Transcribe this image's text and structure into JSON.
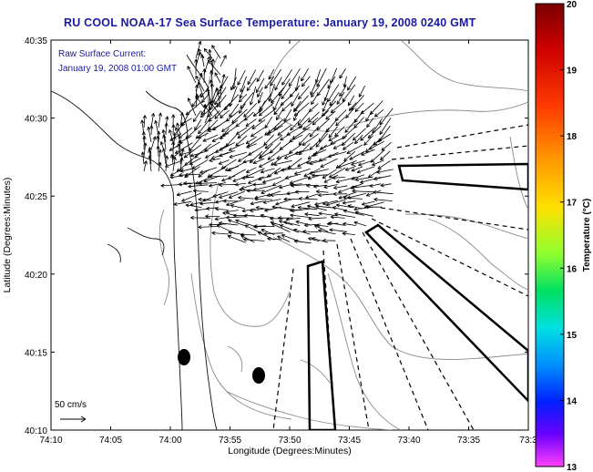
{
  "title": "RU COOL  NOAA-17  Sea Surface Temperature:  January 19, 2008 0240 GMT",
  "annotation": {
    "line1": "Raw Surface Current:",
    "line2": "January 19, 2008 01:00 GMT"
  },
  "scale_label": "50 cm/s",
  "axes": {
    "xlabel": "Longitude (Degrees:Minutes)",
    "ylabel": "Latitude (Degrees:Minutes)",
    "x_ticks": [
      "74:10",
      "74:05",
      "74:00",
      "73:55",
      "73:50",
      "73:45",
      "73:40",
      "73:35",
      "73:3"
    ],
    "y_ticks": [
      "40:35",
      "40:30",
      "40:25",
      "40:20",
      "40:15",
      "40:10"
    ]
  },
  "colorbar": {
    "label": "Temperature (°C)",
    "ticks": [
      "20",
      "19",
      "18",
      "17",
      "16",
      "15",
      "14",
      "13"
    ],
    "min": 13,
    "max": 20
  },
  "colors": {
    "title": "#1a1aa0",
    "coast": "#000000",
    "bathymetry": "#808080",
    "vectors": "#000000"
  }
}
